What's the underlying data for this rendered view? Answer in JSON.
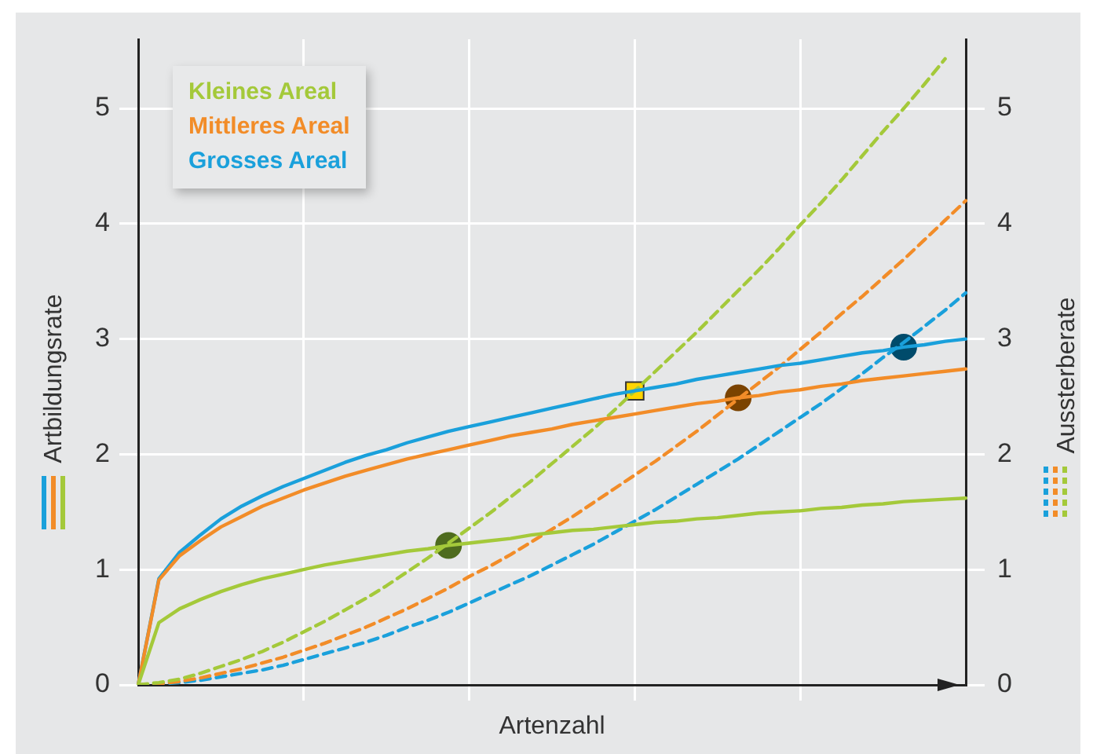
{
  "chart_data": {
    "type": "line",
    "xlabel": "Artenzahl",
    "ylabel": "Artbildungsrate",
    "y2label": "Aussterberate",
    "grid": true,
    "marker": "none",
    "categories": [
      null,
      null,
      null,
      null,
      null,
      null,
      null,
      null,
      null,
      null,
      null,
      null,
      null,
      null,
      null,
      null,
      null,
      null,
      null,
      null,
      null,
      null,
      null,
      null,
      null,
      null,
      null,
      null,
      null,
      null,
      null,
      null,
      null,
      null,
      null,
      null,
      null,
      null,
      null,
      null,
      null
    ],
    "ylim": [
      0,
      5.6
    ],
    "yticks": [
      0,
      1,
      2,
      3,
      4,
      5
    ],
    "y2lim": [
      0,
      5.6
    ],
    "y2ticks": [
      0,
      1,
      2,
      3,
      4,
      5
    ],
    "series": [
      {
        "name": "Kleines Areal",
        "color": "#a4c93a",
        "line_style": "solid",
        "values": [
          0,
          0.54,
          0.66,
          0.74,
          0.81,
          0.87,
          0.92,
          0.96,
          1.0,
          1.04,
          1.07,
          1.1,
          1.13,
          1.16,
          1.18,
          1.21,
          1.23,
          1.25,
          1.27,
          1.3,
          1.32,
          1.34,
          1.35,
          1.37,
          1.39,
          1.41,
          1.42,
          1.44,
          1.45,
          1.47,
          1.49,
          1.5,
          1.51,
          1.53,
          1.54,
          1.56,
          1.57,
          1.59,
          1.6,
          1.61,
          1.62
        ]
      },
      {
        "name": "Mittleres Areal",
        "color": "#f28c28",
        "line_style": "solid",
        "values": [
          0,
          0.91,
          1.12,
          1.25,
          1.37,
          1.46,
          1.55,
          1.62,
          1.69,
          1.75,
          1.81,
          1.86,
          1.91,
          1.96,
          2.0,
          2.04,
          2.08,
          2.12,
          2.16,
          2.19,
          2.22,
          2.26,
          2.29,
          2.32,
          2.35,
          2.38,
          2.41,
          2.44,
          2.46,
          2.49,
          2.51,
          2.54,
          2.56,
          2.59,
          2.61,
          2.64,
          2.66,
          2.68,
          2.7,
          2.72,
          2.74
        ]
      },
      {
        "name": "Grosses Areal",
        "color": "#1aa0db",
        "line_style": "solid",
        "values": [
          0,
          0.92,
          1.15,
          1.3,
          1.44,
          1.55,
          1.64,
          1.72,
          1.79,
          1.86,
          1.93,
          1.99,
          2.04,
          2.1,
          2.15,
          2.2,
          2.24,
          2.28,
          2.32,
          2.36,
          2.4,
          2.44,
          2.48,
          2.52,
          2.55,
          2.58,
          2.61,
          2.65,
          2.68,
          2.71,
          2.74,
          2.77,
          2.79,
          2.82,
          2.85,
          2.88,
          2.9,
          2.93,
          2.95,
          2.98,
          3.0
        ]
      },
      {
        "color": "#a4c93a",
        "line_style": "dashed",
        "axis": "y2",
        "values": [
          0,
          0.02,
          0.05,
          0.1,
          0.16,
          0.22,
          0.29,
          0.37,
          0.46,
          0.55,
          0.65,
          0.75,
          0.86,
          0.98,
          1.1,
          1.23,
          1.36,
          1.49,
          1.63,
          1.77,
          1.92,
          2.07,
          2.22,
          2.38,
          2.55,
          2.72,
          2.89,
          3.06,
          3.24,
          3.42,
          3.6,
          3.79,
          3.99,
          4.18,
          4.38,
          4.59,
          4.8,
          5.0,
          5.21,
          5.43,
          null
        ]
      },
      {
        "color": "#f28c28",
        "line_style": "dashed",
        "axis": "y2",
        "values": [
          0,
          0.01,
          0.03,
          0.06,
          0.1,
          0.14,
          0.19,
          0.24,
          0.3,
          0.36,
          0.43,
          0.5,
          0.58,
          0.66,
          0.75,
          0.84,
          0.94,
          1.03,
          1.13,
          1.24,
          1.35,
          1.46,
          1.58,
          1.7,
          1.82,
          1.94,
          2.07,
          2.2,
          2.34,
          2.48,
          2.62,
          2.76,
          2.91,
          3.06,
          3.22,
          3.37,
          3.53,
          3.69,
          3.86,
          4.03,
          4.2
        ]
      },
      {
        "color": "#1aa0db",
        "line_style": "dashed",
        "axis": "y2",
        "values": [
          0,
          0.01,
          0.02,
          0.04,
          0.07,
          0.1,
          0.13,
          0.17,
          0.22,
          0.27,
          0.32,
          0.37,
          0.43,
          0.5,
          0.56,
          0.63,
          0.71,
          0.79,
          0.87,
          0.95,
          1.04,
          1.13,
          1.22,
          1.32,
          1.42,
          1.52,
          1.63,
          1.74,
          1.85,
          1.96,
          2.08,
          2.2,
          2.32,
          2.44,
          2.57,
          2.7,
          2.84,
          2.97,
          3.11,
          3.25,
          3.4
        ]
      },
      {
        "type": "scatter",
        "marker": "circle",
        "color": "#4e6b1e",
        "values": [
          null,
          null,
          null,
          null,
          null,
          null,
          null,
          null,
          null,
          null,
          null,
          null,
          null,
          null,
          null,
          1.21,
          null,
          null,
          null,
          null,
          null,
          null,
          null,
          null,
          null,
          null,
          null,
          null,
          null,
          null,
          null,
          null,
          null,
          null,
          null,
          null,
          null,
          null,
          null,
          null,
          null
        ]
      },
      {
        "type": "scatter",
        "marker": "square",
        "color": "#ffd400",
        "values": [
          null,
          null,
          null,
          null,
          null,
          null,
          null,
          null,
          null,
          null,
          null,
          null,
          null,
          null,
          null,
          null,
          null,
          null,
          null,
          null,
          null,
          null,
          null,
          null,
          2.55,
          null,
          null,
          null,
          null,
          null,
          null,
          null,
          null,
          null,
          null,
          null,
          null,
          null,
          null,
          null,
          null
        ]
      },
      {
        "type": "scatter",
        "marker": "circle",
        "color": "#7b4300",
        "values": [
          null,
          null,
          null,
          null,
          null,
          null,
          null,
          null,
          null,
          null,
          null,
          null,
          null,
          null,
          null,
          null,
          null,
          null,
          null,
          null,
          null,
          null,
          null,
          null,
          null,
          null,
          null,
          null,
          null,
          2.49,
          null,
          null,
          null,
          null,
          null,
          null,
          null,
          null,
          null,
          null,
          null
        ]
      },
      {
        "type": "scatter",
        "marker": "circle",
        "color": "#004b6b",
        "values": [
          null,
          null,
          null,
          null,
          null,
          null,
          null,
          null,
          null,
          null,
          null,
          null,
          null,
          null,
          null,
          null,
          null,
          null,
          null,
          null,
          null,
          null,
          null,
          null,
          null,
          null,
          null,
          null,
          null,
          null,
          null,
          null,
          null,
          null,
          null,
          null,
          null,
          2.93,
          null,
          null,
          null
        ]
      }
    ]
  }
}
